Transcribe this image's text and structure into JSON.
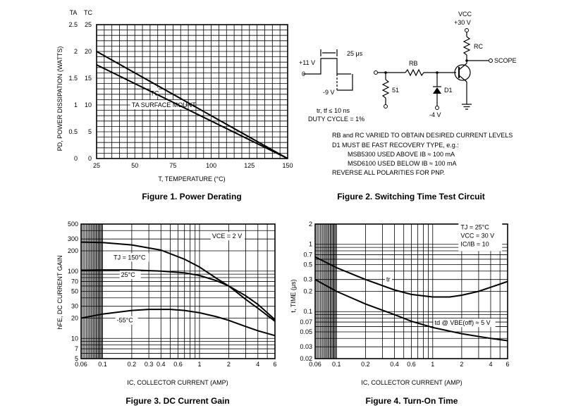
{
  "charts": {
    "fig1": {
      "caption": "Figure 1. Power Derating",
      "ylabel": "PD, POWER DISSIPATION (WATTS)",
      "xlabel": "T, TEMPERATURE (°C)",
      "col_head_ta": "TA",
      "col_head_tc": "TC"
    },
    "fig2": {
      "caption": "Figure 2. Switching Time Test Circuit"
    },
    "fig3": {
      "caption": "Figure 3. DC Current Gain",
      "ylabel": "hFE, DC CURRENT GAIN",
      "xlabel": "IC, COLLECTOR CURRENT (AMP)"
    },
    "fig4": {
      "caption": "Figure 4. Turn-On Time",
      "ylabel": "t, TIME (μs)",
      "xlabel": "IC, COLLECTOR CURRENT (AMP)"
    }
  },
  "circuit": {
    "vcc_label": "VCC",
    "vcc_value": "+30 V",
    "rc_label": "RC",
    "rb_label": "RB",
    "d1_label": "D1",
    "scope_label": "SCOPE",
    "r51_label": "51",
    "minus4v_label": "-4 V",
    "plus11v_label": "+11 V",
    "zero_label": "0",
    "minus9v_label": "-9 V",
    "pulse_width_label": "25 μs",
    "rise_fall_label": "tr, tf ≤ 10 ns",
    "duty_cycle_label": "DUTY CYCLE = 1%",
    "notes": [
      "RB and RC VARIED TO OBTAIN DESIRED CURRENT LEVELS",
      "D1 MUST BE FAST RECOVERY TYPE, e.g.:",
      "MSB5300 USED ABOVE IB ≈ 100 mA",
      "MSD6100 USED BELOW IB ≈ 100 mA",
      "REVERSE ALL POLARITIES FOR PNP."
    ]
  },
  "chart_data": [
    {
      "type": "line",
      "title": "Figure 1. Power Derating",
      "xlabel": "T, TEMPERATURE (°C)",
      "ylabel": "PD, POWER DISSIPATION (WATTS)",
      "xlim": [
        25,
        150
      ],
      "ylim": [
        0,
        25
      ],
      "x_ticks": [
        "25",
        "50",
        "75",
        "100",
        "125",
        "150"
      ],
      "x_tick_values": [
        25,
        50,
        75,
        100,
        125,
        150
      ],
      "y_ticks_tc": [
        "0",
        "5",
        "10",
        "15",
        "20",
        "25"
      ],
      "y_ticks_ta": [
        "0",
        "0.5",
        "1",
        "1.5",
        "2",
        "2.5"
      ],
      "y_tick_values": [
        0,
        5,
        10,
        15,
        20,
        25
      ],
      "grid": true,
      "series": [
        {
          "name": "TC",
          "x": [
            25,
            150
          ],
          "y": [
            20,
            0
          ]
        },
        {
          "name": "TA SURFACE MOUNT",
          "x": [
            25,
            150
          ],
          "y": [
            17.5,
            0
          ]
        }
      ]
    },
    {
      "type": "line",
      "title": "Figure 3. DC Current Gain",
      "xlabel": "IC, COLLECTOR CURRENT (AMP)",
      "ylabel": "hFE, DC CURRENT GAIN",
      "x_scale": "log",
      "y_scale": "log",
      "xlim": [
        0.06,
        6
      ],
      "ylim": [
        5,
        500
      ],
      "x_ticks": [
        "0.06",
        "0.1",
        "0.2",
        "0.3",
        "0.4",
        "0.6",
        "1",
        "2",
        "4",
        "6"
      ],
      "x_tick_values": [
        0.06,
        0.1,
        0.2,
        0.3,
        0.4,
        0.6,
        1,
        2,
        4,
        6
      ],
      "y_ticks": [
        "5",
        "7",
        "10",
        "20",
        "30",
        "50",
        "70",
        "100",
        "200",
        "300",
        "500"
      ],
      "y_tick_values": [
        5,
        7,
        10,
        20,
        30,
        50,
        70,
        100,
        200,
        300,
        500
      ],
      "annotation": "VCE = 2 V",
      "grid": true,
      "series": [
        {
          "name": "TJ = 150°C",
          "x": [
            0.06,
            0.1,
            0.2,
            0.4,
            0.7,
            1,
            1.5,
            2,
            3,
            4,
            6
          ],
          "y": [
            270,
            265,
            245,
            205,
            150,
            115,
            78,
            60,
            38,
            28,
            18
          ]
        },
        {
          "name": "25°C",
          "x": [
            0.06,
            0.1,
            0.2,
            0.4,
            0.7,
            1,
            1.5,
            2,
            3,
            4,
            6
          ],
          "y": [
            103,
            104,
            104,
            100,
            94,
            86,
            72,
            60,
            43,
            32,
            19
          ]
        },
        {
          "name": "-55°C",
          "x": [
            0.06,
            0.1,
            0.2,
            0.3,
            0.5,
            0.7,
            1,
            1.5,
            2,
            3,
            4,
            6
          ],
          "y": [
            20,
            23,
            26,
            27,
            27,
            26,
            24,
            21,
            18.5,
            15,
            13,
            11
          ]
        }
      ]
    },
    {
      "type": "line",
      "title": "Figure 4. Turn-On Time",
      "xlabel": "IC, COLLECTOR CURRENT (AMP)",
      "ylabel": "t, TIME (μs)",
      "x_scale": "log",
      "y_scale": "log",
      "xlim": [
        0.06,
        6
      ],
      "ylim": [
        0.02,
        2
      ],
      "x_ticks": [
        "0.06",
        "0.1",
        "0.2",
        "0.4",
        "0.6",
        "1",
        "2",
        "4",
        "6"
      ],
      "x_tick_values": [
        0.06,
        0.1,
        0.2,
        0.4,
        0.6,
        1,
        2,
        4,
        6
      ],
      "y_ticks": [
        "0.02",
        "0.03",
        "0.05",
        "0.07",
        "0.1",
        "0.2",
        "0.3",
        "0.5",
        "0.7",
        "1",
        "2"
      ],
      "y_tick_values": [
        0.02,
        0.03,
        0.05,
        0.07,
        0.1,
        0.2,
        0.3,
        0.5,
        0.7,
        1,
        2
      ],
      "annotations": [
        "TJ = 25°C",
        "VCC = 30 V",
        "IC/IB = 10"
      ],
      "grid": true,
      "series": [
        {
          "name": "tr",
          "x": [
            0.06,
            0.1,
            0.2,
            0.4,
            0.6,
            1,
            1.5,
            2,
            3,
            4,
            6
          ],
          "y": [
            0.65,
            0.45,
            0.3,
            0.21,
            0.18,
            0.165,
            0.165,
            0.175,
            0.2,
            0.23,
            0.28
          ]
        },
        {
          "name": "td @ VBE(off) ≈ 5 V",
          "x": [
            0.06,
            0.1,
            0.2,
            0.4,
            0.6,
            1,
            2,
            4,
            6
          ],
          "y": [
            0.3,
            0.2,
            0.13,
            0.09,
            0.072,
            0.058,
            0.047,
            0.04,
            0.037
          ]
        }
      ]
    }
  ]
}
